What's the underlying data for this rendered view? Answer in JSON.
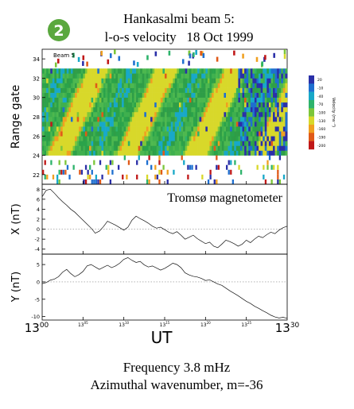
{
  "figure": {
    "badge": "2",
    "title_line1": "Hankasalmi beam 5:",
    "title_line2": "l-o-s velocity   18 Oct 1999",
    "footer_line1": "Frequency 3.8 mHz",
    "footer_line2": "Azimuthal wavenumber, m=-36",
    "x_tick_start_hour": "13",
    "x_tick_start_min": "00",
    "x_tick_end_hour": "13",
    "x_tick_end_min": "30",
    "x_label": "UT"
  },
  "chart_data": [
    {
      "type": "heatmap",
      "panel_label": "Beam 5",
      "ylabel": "Range gate",
      "yticks": [
        "22",
        "24",
        "26",
        "28",
        "30",
        "32",
        "34"
      ],
      "ylim": [
        21,
        35
      ],
      "xlim_min": [
        0,
        30
      ],
      "minor_x_ticks": [
        {
          "h": "13",
          "m": "05"
        },
        {
          "h": "13",
          "m": "10"
        },
        {
          "h": "13",
          "m": "15"
        },
        {
          "h": "13",
          "m": "20"
        },
        {
          "h": "13",
          "m": "25"
        }
      ],
      "filled_gate_range": [
        24,
        33
      ],
      "colorbar": {
        "label": "Velocity (ms⁻¹)",
        "ticks": [
          "20",
          "-10",
          "-40",
          "-70",
          "-100",
          "-130",
          "-160",
          "-190",
          "-200"
        ],
        "colors": [
          "#2a2fa8",
          "#1e6fd0",
          "#18a8c8",
          "#2db36b",
          "#7cc63a",
          "#d8d82a",
          "#f0a020",
          "#e05a18",
          "#c01818"
        ]
      },
      "velocity_pattern": "green background with yellow/orange diagonal stripes of negative velocity, blue returns toward 13:25-13:30"
    },
    {
      "type": "line",
      "annotation": "Tromsø magnetometer",
      "ylabel": "X (nT)",
      "yticks": [
        "-4",
        "-2",
        "0",
        "2",
        "4",
        "6",
        "8"
      ],
      "ylim": [
        -5,
        9
      ],
      "xlim_min": [
        0,
        30
      ],
      "x": [
        0,
        0.5,
        1,
        1.5,
        2,
        2.5,
        3,
        3.5,
        4,
        4.5,
        5,
        5.5,
        6,
        6.5,
        7,
        7.5,
        8,
        8.5,
        9,
        9.5,
        10,
        10.5,
        11,
        11.5,
        12,
        12.5,
        13,
        13.5,
        14,
        14.5,
        15,
        15.5,
        16,
        16.5,
        17,
        17.5,
        18,
        18.5,
        19,
        19.5,
        20,
        20.5,
        21,
        21.5,
        22,
        22.5,
        23,
        23.5,
        24,
        24.5,
        25,
        25.5,
        26,
        26.5,
        27,
        27.5,
        28,
        28.5,
        29,
        29.5,
        30
      ],
      "y": [
        6.5,
        7.8,
        8.0,
        7.2,
        6.3,
        5.5,
        4.8,
        4.0,
        3.4,
        2.6,
        1.8,
        1.0,
        0.2,
        -0.8,
        -0.4,
        0.5,
        1.6,
        1.2,
        0.8,
        0.3,
        -0.2,
        0.4,
        1.8,
        2.6,
        2.1,
        1.7,
        1.2,
        0.6,
        0.2,
        0.4,
        -0.1,
        -0.6,
        -0.9,
        -0.5,
        -1.2,
        -2.0,
        -1.6,
        -1.2,
        -1.9,
        -2.4,
        -2.9,
        -2.6,
        -3.4,
        -3.7,
        -3.0,
        -2.2,
        -2.5,
        -2.9,
        -3.4,
        -3.0,
        -2.2,
        -2.7,
        -2.0,
        -1.4,
        -1.7,
        -1.1,
        -0.6,
        -0.9,
        -0.2,
        0.3,
        0.6
      ]
    },
    {
      "type": "line",
      "ylabel": "Y (nT)",
      "yticks": [
        "-10",
        "-5",
        "0",
        "5"
      ],
      "ylim": [
        -11,
        8
      ],
      "xlim_min": [
        0,
        30
      ],
      "x": [
        0,
        0.5,
        1,
        1.5,
        2,
        2.5,
        3,
        3.5,
        4,
        4.5,
        5,
        5.5,
        6,
        6.5,
        7,
        7.5,
        8,
        8.5,
        9,
        9.5,
        10,
        10.5,
        11,
        11.5,
        12,
        12.5,
        13,
        13.5,
        14,
        14.5,
        15,
        15.5,
        16,
        16.5,
        17,
        17.5,
        18,
        18.5,
        19,
        19.5,
        20,
        20.5,
        21,
        21.5,
        22,
        22.5,
        23,
        23.5,
        24,
        24.5,
        25,
        25.5,
        26,
        26.5,
        27,
        27.5,
        28,
        28.5,
        29,
        29.5,
        30
      ],
      "y": [
        -0.5,
        -0.2,
        0.5,
        0.8,
        1.5,
        2.8,
        3.6,
        2.4,
        1.5,
        2.1,
        3.0,
        4.6,
        5.0,
        4.3,
        3.6,
        4.2,
        4.8,
        4.1,
        4.6,
        5.4,
        6.5,
        7.0,
        6.2,
        5.6,
        5.9,
        4.9,
        4.3,
        4.6,
        4.0,
        3.4,
        3.9,
        4.6,
        5.4,
        5.0,
        4.1,
        2.6,
        2.0,
        1.6,
        1.4,
        1.0,
        0.4,
        0.6,
        0.0,
        -0.6,
        -1.0,
        -1.8,
        -2.6,
        -3.3,
        -4.0,
        -4.8,
        -5.6,
        -6.2,
        -7.0,
        -7.6,
        -8.3,
        -8.9,
        -9.6,
        -10.1,
        -10.4,
        -10.2,
        -10.5
      ]
    }
  ]
}
